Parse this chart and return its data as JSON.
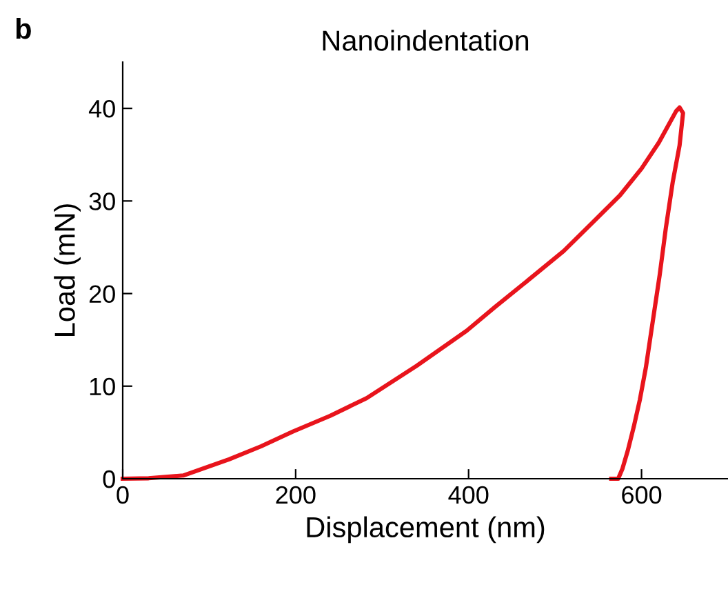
{
  "chart_data": {
    "type": "line",
    "title": "Nanoindentation",
    "xlabel": "Displacement (nm)",
    "ylabel": "Load (mN)",
    "annotations": [
      "b"
    ],
    "series": [
      {
        "color": "#e8141c",
        "x": [
          0,
          30,
          70,
          123,
          160,
          197,
          240,
          282,
          340,
          398,
          430,
          467,
          510,
          547,
          575,
          600,
          620,
          640,
          644,
          648,
          644,
          636,
          628,
          621,
          613,
          605,
          598,
          591,
          584,
          578,
          573,
          565
        ],
        "values": [
          0,
          0.05,
          0.35,
          2.1,
          3.5,
          5.1,
          6.8,
          8.7,
          12.2,
          16,
          18.5,
          21.3,
          24.6,
          28,
          30.6,
          33.5,
          36.3,
          39.7,
          40.1,
          39.5,
          36,
          32,
          27,
          22,
          17,
          12,
          8.5,
          5.6,
          3,
          1.1,
          0,
          0
        ]
      }
    ],
    "xlim": [
      0,
      700
    ],
    "ylim": [
      0,
      45
    ],
    "xticks": [
      0,
      200,
      400,
      600
    ],
    "yticks": [
      0,
      10,
      20,
      30,
      40
    ],
    "grid": false,
    "legend": false,
    "line_style": "solid",
    "marker": "none"
  }
}
